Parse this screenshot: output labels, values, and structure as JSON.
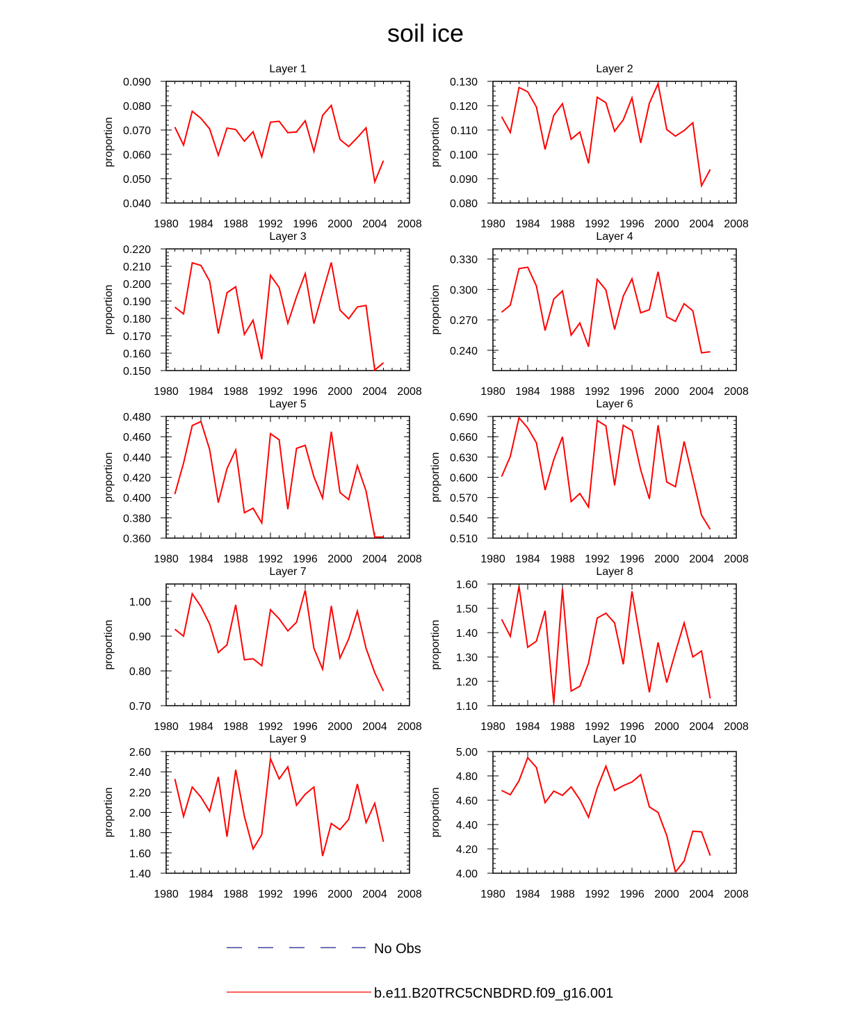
{
  "title": "soil ice",
  "legend": [
    {
      "label": "No Obs",
      "color": "#1a1a8c",
      "dash": "dashed"
    },
    {
      "label": "b.e11.B20TRC5CNBDRD.f09_g16.001",
      "color": "#ff0000",
      "dash": "solid"
    }
  ],
  "chart_data": [
    {
      "type": "line",
      "title": "Layer 1",
      "ylabel": "proportion",
      "xlim": [
        1980,
        2008
      ],
      "ylim": [
        0.04,
        0.09
      ],
      "xticks": [
        "1980",
        "1984",
        "1988",
        "1992",
        "1996",
        "2000",
        "2004",
        "2008"
      ],
      "yticks": [
        "0.040",
        "0.050",
        "0.060",
        "0.070",
        "0.080",
        "0.090"
      ],
      "series": [
        {
          "color": "#ff0000",
          "x": [
            1981,
            1982,
            1983,
            1984,
            1985,
            1986,
            1987,
            1988,
            1989,
            1990,
            1991,
            1992,
            1993,
            1994,
            1995,
            1996,
            1997,
            1998,
            1999,
            2000,
            2001,
            2002,
            2003,
            2004,
            2005
          ],
          "values": [
            0.0712,
            0.0638,
            0.0777,
            0.0748,
            0.0705,
            0.0596,
            0.0708,
            0.0702,
            0.0654,
            0.0693,
            0.059,
            0.0732,
            0.0736,
            0.0689,
            0.0692,
            0.0738,
            0.0612,
            0.076,
            0.0801,
            0.0661,
            0.0632,
            0.0669,
            0.0709,
            0.0487,
            0.0574
          ]
        }
      ]
    },
    {
      "type": "line",
      "title": "Layer 2",
      "ylabel": "proportion",
      "xlim": [
        1980,
        2008
      ],
      "ylim": [
        0.08,
        0.13
      ],
      "xticks": [
        "1980",
        "1984",
        "1988",
        "1992",
        "1996",
        "2000",
        "2004",
        "2008"
      ],
      "yticks": [
        "0.080",
        "0.090",
        "0.100",
        "0.110",
        "0.120",
        "0.130"
      ],
      "series": [
        {
          "color": "#ff0000",
          "x": [
            1981,
            1982,
            1983,
            1984,
            1985,
            1986,
            1987,
            1988,
            1989,
            1990,
            1991,
            1992,
            1993,
            1994,
            1995,
            1996,
            1997,
            1998,
            1999,
            2000,
            2001,
            2002,
            2003,
            2004,
            2005
          ],
          "values": [
            0.1155,
            0.109,
            0.1275,
            0.1257,
            0.1195,
            0.102,
            0.116,
            0.1208,
            0.1062,
            0.1092,
            0.0963,
            0.1235,
            0.1212,
            0.1095,
            0.1142,
            0.1232,
            0.1047,
            0.121,
            0.129,
            0.1102,
            0.1075,
            0.1098,
            0.113,
            0.0871,
            0.0938
          ]
        }
      ]
    },
    {
      "type": "line",
      "title": "Layer 3",
      "ylabel": "proportion",
      "xlim": [
        1980,
        2008
      ],
      "ylim": [
        0.15,
        0.22
      ],
      "xticks": [
        "1980",
        "1984",
        "1988",
        "1992",
        "1996",
        "2000",
        "2004",
        "2008"
      ],
      "yticks": [
        "0.150",
        "0.160",
        "0.170",
        "0.180",
        "0.190",
        "0.200",
        "0.210",
        "0.220"
      ],
      "series": [
        {
          "color": "#ff0000",
          "x": [
            1981,
            1982,
            1983,
            1984,
            1985,
            1986,
            1987,
            1988,
            1989,
            1990,
            1991,
            1992,
            1993,
            1994,
            1995,
            1996,
            1997,
            1998,
            1999,
            2000,
            2001,
            2002,
            2003,
            2004,
            2005
          ],
          "values": [
            0.1865,
            0.1826,
            0.212,
            0.2105,
            0.2015,
            0.1713,
            0.1948,
            0.1982,
            0.1708,
            0.179,
            0.1565,
            0.2048,
            0.1978,
            0.1772,
            0.1925,
            0.2058,
            0.177,
            0.1948,
            0.2122,
            0.1848,
            0.1798,
            0.1866,
            0.1875,
            0.1503,
            0.1545
          ]
        }
      ]
    },
    {
      "type": "line",
      "title": "Layer 4",
      "ylabel": "proportion",
      "xlim": [
        1980,
        2008
      ],
      "ylim": [
        0.22,
        0.34
      ],
      "xticks": [
        "1980",
        "1984",
        "1988",
        "1992",
        "1996",
        "2000",
        "2004",
        "2008"
      ],
      "yticks": [
        "0.240",
        "0.270",
        "0.300",
        "0.330"
      ],
      "series": [
        {
          "color": "#ff0000",
          "x": [
            1981,
            1982,
            1983,
            1984,
            1985,
            1986,
            1987,
            1988,
            1989,
            1990,
            1991,
            1992,
            1993,
            1994,
            1995,
            1996,
            1997,
            1998,
            1999,
            2000,
            2001,
            2002,
            2003,
            2004,
            2005
          ],
          "values": [
            0.2775,
            0.2845,
            0.3205,
            0.322,
            0.3035,
            0.2595,
            0.2905,
            0.2985,
            0.255,
            0.267,
            0.2435,
            0.31,
            0.2995,
            0.2605,
            0.2935,
            0.3105,
            0.277,
            0.28,
            0.3175,
            0.273,
            0.2685,
            0.286,
            0.279,
            0.2375,
            0.2385
          ]
        }
      ]
    },
    {
      "type": "line",
      "title": "Layer 5",
      "ylabel": "proportion",
      "xlim": [
        1980,
        2008
      ],
      "ylim": [
        0.36,
        0.48
      ],
      "xticks": [
        "1980",
        "1984",
        "1988",
        "1992",
        "1996",
        "2000",
        "2004",
        "2008"
      ],
      "yticks": [
        "0.360",
        "0.380",
        "0.400",
        "0.420",
        "0.440",
        "0.460",
        "0.480"
      ],
      "series": [
        {
          "color": "#ff0000",
          "x": [
            1981,
            1982,
            1983,
            1984,
            1985,
            1986,
            1987,
            1988,
            1989,
            1990,
            1991,
            1992,
            1993,
            1994,
            1995,
            1996,
            1997,
            1998,
            1999,
            2000,
            2001,
            2002,
            2003,
            2004,
            2005
          ],
          "values": [
            0.4035,
            0.434,
            0.471,
            0.475,
            0.4475,
            0.395,
            0.4285,
            0.447,
            0.385,
            0.3895,
            0.375,
            0.463,
            0.457,
            0.3885,
            0.4485,
            0.4515,
            0.4205,
            0.3995,
            0.465,
            0.405,
            0.398,
            0.4315,
            0.4065,
            0.361,
            0.361
          ]
        }
      ]
    },
    {
      "type": "line",
      "title": "Layer 6",
      "ylabel": "proportion",
      "xlim": [
        1980,
        2008
      ],
      "ylim": [
        0.51,
        0.69
      ],
      "xticks": [
        "1980",
        "1984",
        "1988",
        "1992",
        "1996",
        "2000",
        "2004",
        "2008"
      ],
      "yticks": [
        "0.510",
        "0.540",
        "0.570",
        "0.600",
        "0.630",
        "0.660",
        "0.690"
      ],
      "series": [
        {
          "color": "#ff0000",
          "x": [
            1981,
            1982,
            1983,
            1984,
            1985,
            1986,
            1987,
            1988,
            1989,
            1990,
            1991,
            1992,
            1993,
            1994,
            1995,
            1996,
            1997,
            1998,
            1999,
            2000,
            2001,
            2002,
            2003,
            2004,
            2005
          ],
          "values": [
            0.601,
            0.631,
            0.688,
            0.673,
            0.651,
            0.581,
            0.626,
            0.66,
            0.564,
            0.576,
            0.556,
            0.684,
            0.676,
            0.588,
            0.677,
            0.669,
            0.611,
            0.568,
            0.677,
            0.593,
            0.586,
            0.653,
            0.599,
            0.544,
            0.523
          ]
        }
      ]
    },
    {
      "type": "line",
      "title": "Layer 7",
      "ylabel": "proportion",
      "xlim": [
        1980,
        2008
      ],
      "ylim": [
        0.7,
        1.05
      ],
      "xticks": [
        "1980",
        "1984",
        "1988",
        "1992",
        "1996",
        "2000",
        "2004",
        "2008"
      ],
      "yticks": [
        "0.70",
        "0.80",
        "0.90",
        "1.00"
      ],
      "series": [
        {
          "color": "#ff0000",
          "x": [
            1981,
            1982,
            1983,
            1984,
            1985,
            1986,
            1987,
            1988,
            1989,
            1990,
            1991,
            1992,
            1993,
            1994,
            1995,
            1996,
            1997,
            1998,
            1999,
            2000,
            2001,
            2002,
            2003,
            2004,
            2005
          ],
          "values": [
            0.92,
            0.9,
            1.022,
            0.985,
            0.935,
            0.853,
            0.875,
            0.99,
            0.832,
            0.835,
            0.815,
            0.976,
            0.95,
            0.915,
            0.94,
            1.032,
            0.865,
            0.805,
            0.987,
            0.837,
            0.892,
            0.972,
            0.865,
            0.795,
            0.742
          ]
        }
      ]
    },
    {
      "type": "line",
      "title": "Layer 8",
      "ylabel": "proportion",
      "xlim": [
        1980,
        2008
      ],
      "ylim": [
        1.1,
        1.6
      ],
      "xticks": [
        "1980",
        "1984",
        "1988",
        "1992",
        "1996",
        "2000",
        "2004",
        "2008"
      ],
      "yticks": [
        "1.10",
        "1.20",
        "1.30",
        "1.40",
        "1.50",
        "1.60"
      ],
      "series": [
        {
          "color": "#ff0000",
          "x": [
            1981,
            1982,
            1983,
            1984,
            1985,
            1986,
            1987,
            1988,
            1989,
            1990,
            1991,
            1992,
            1993,
            1994,
            1995,
            1996,
            1997,
            1998,
            1999,
            2000,
            2001,
            2002,
            2003,
            2004,
            2005
          ],
          "values": [
            1.455,
            1.385,
            1.59,
            1.34,
            1.365,
            1.49,
            1.11,
            1.58,
            1.16,
            1.18,
            1.275,
            1.46,
            1.48,
            1.44,
            1.27,
            1.57,
            1.36,
            1.155,
            1.36,
            1.195,
            1.32,
            1.44,
            1.3,
            1.325,
            1.13
          ]
        }
      ]
    },
    {
      "type": "line",
      "title": "Layer 9",
      "ylabel": "proportion",
      "xlim": [
        1980,
        2008
      ],
      "ylim": [
        1.4,
        2.6
      ],
      "xticks": [
        "1980",
        "1984",
        "1988",
        "1992",
        "1996",
        "2000",
        "2004",
        "2008"
      ],
      "yticks": [
        "1.40",
        "1.60",
        "1.80",
        "2.00",
        "2.20",
        "2.40",
        "2.60"
      ],
      "series": [
        {
          "color": "#ff0000",
          "x": [
            1981,
            1982,
            1983,
            1984,
            1985,
            1986,
            1987,
            1988,
            1989,
            1990,
            1991,
            1992,
            1993,
            1994,
            1995,
            1996,
            1997,
            1998,
            1999,
            2000,
            2001,
            2002,
            2003,
            2004,
            2005
          ],
          "values": [
            2.33,
            1.96,
            2.25,
            2.15,
            2.01,
            2.35,
            1.76,
            2.42,
            1.96,
            1.64,
            1.78,
            2.53,
            2.33,
            2.45,
            2.07,
            2.18,
            2.25,
            1.57,
            1.89,
            1.83,
            1.93,
            2.28,
            1.9,
            2.09,
            1.71
          ]
        }
      ]
    },
    {
      "type": "line",
      "title": "Layer 10",
      "ylabel": "proportion",
      "xlim": [
        1980,
        2008
      ],
      "ylim": [
        4.0,
        5.0
      ],
      "xticks": [
        "1980",
        "1984",
        "1988",
        "1992",
        "1996",
        "2000",
        "2004",
        "2008"
      ],
      "yticks": [
        "4.00",
        "4.20",
        "4.40",
        "4.60",
        "4.80",
        "5.00"
      ],
      "series": [
        {
          "color": "#ff0000",
          "x": [
            1981,
            1982,
            1983,
            1984,
            1985,
            1986,
            1987,
            1988,
            1989,
            1990,
            1991,
            1992,
            1993,
            1994,
            1995,
            1996,
            1997,
            1998,
            1999,
            2000,
            2001,
            2002,
            2003,
            2004,
            2005
          ],
          "values": [
            4.68,
            4.645,
            4.76,
            4.95,
            4.87,
            4.58,
            4.675,
            4.64,
            4.71,
            4.605,
            4.46,
            4.7,
            4.88,
            4.68,
            4.72,
            4.75,
            4.81,
            4.545,
            4.5,
            4.31,
            4.01,
            4.1,
            4.345,
            4.34,
            4.145
          ]
        }
      ]
    }
  ]
}
